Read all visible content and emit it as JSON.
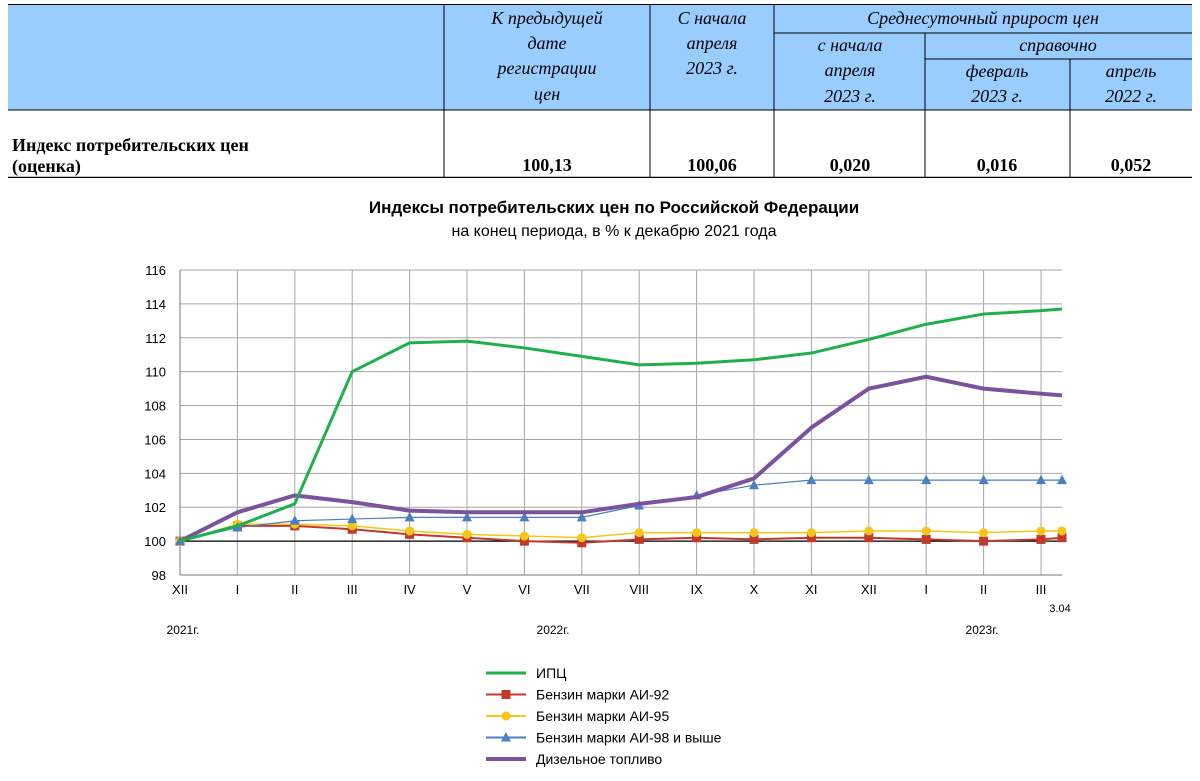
{
  "table": {
    "headers": {
      "col1": [
        "К предыдущей",
        "дате",
        "регистрации",
        "цен"
      ],
      "col2": [
        "С начала",
        "апреля",
        "2023 г."
      ],
      "group": "Среднесуточный прирост цен",
      "col3": [
        "с начала",
        "апреля",
        "2023 г."
      ],
      "subgroup": "справочно",
      "col4": [
        "февраль",
        "2023 г."
      ],
      "col5": [
        "апрель",
        "2022 г."
      ]
    },
    "row": {
      "label": [
        "Индекс потребительских цен",
        "(оценка)"
      ],
      "values": [
        "100,13",
        "100,06",
        "0,020",
        "0,016",
        "0,052"
      ]
    }
  },
  "chart_data": {
    "type": "line",
    "title": "Индексы потребительских цен по Российской Федерации",
    "subtitle": "на конец периода, в % к декабрю 2021 года",
    "x_labels": [
      "XII",
      "I",
      "II",
      "III",
      "IV",
      "V",
      "VI",
      "VII",
      "VIII",
      "IX",
      "X",
      "XI",
      "XII",
      "I",
      "II",
      "III",
      "3.04"
    ],
    "year_labels": [
      "2021г.",
      "2022г.",
      "2023г."
    ],
    "ylim": [
      98,
      116
    ],
    "y_ticks": [
      98,
      100,
      102,
      104,
      106,
      108,
      110,
      112,
      114,
      116
    ],
    "grid": true,
    "legend_position": "bottom",
    "series": [
      {
        "name": "ИПЦ",
        "color": "#1fb04b",
        "marker": "none",
        "width": 3,
        "values": [
          100.0,
          100.9,
          102.2,
          110.0,
          111.7,
          111.8,
          111.4,
          110.9,
          110.4,
          110.5,
          110.7,
          111.1,
          111.9,
          112.8,
          113.4,
          113.6,
          113.7
        ]
      },
      {
        "name": "Бензин марки АИ-92",
        "color": "#c0392b",
        "marker": "square",
        "width": 2,
        "values": [
          100.0,
          100.9,
          100.9,
          100.7,
          100.4,
          100.2,
          100.0,
          99.9,
          100.1,
          100.2,
          100.1,
          100.2,
          100.2,
          100.1,
          100.0,
          100.1,
          100.2
        ]
      },
      {
        "name": "Бензин марки АИ-95",
        "color": "#f5c518",
        "marker": "circle",
        "width": 1.5,
        "values": [
          100.0,
          101.0,
          101.0,
          100.9,
          100.6,
          100.4,
          100.3,
          100.2,
          100.5,
          100.5,
          100.5,
          100.5,
          100.6,
          100.6,
          100.5,
          100.6,
          100.6
        ]
      },
      {
        "name": "Бензин марки АИ-98 и выше",
        "color": "#4a7fc1",
        "marker": "triangle",
        "width": 1.2,
        "values": [
          100.0,
          100.8,
          101.2,
          101.3,
          101.4,
          101.4,
          101.4,
          101.4,
          102.1,
          102.7,
          103.3,
          103.6,
          103.6,
          103.6,
          103.6,
          103.6,
          103.6
        ]
      },
      {
        "name": "Дизельное топливо",
        "color": "#7b529e",
        "marker": "none",
        "width": 4,
        "values": [
          100.0,
          101.7,
          102.7,
          102.3,
          101.8,
          101.7,
          101.7,
          101.7,
          102.2,
          102.6,
          103.7,
          106.7,
          109.0,
          109.7,
          109.0,
          108.7,
          108.6
        ]
      }
    ]
  }
}
